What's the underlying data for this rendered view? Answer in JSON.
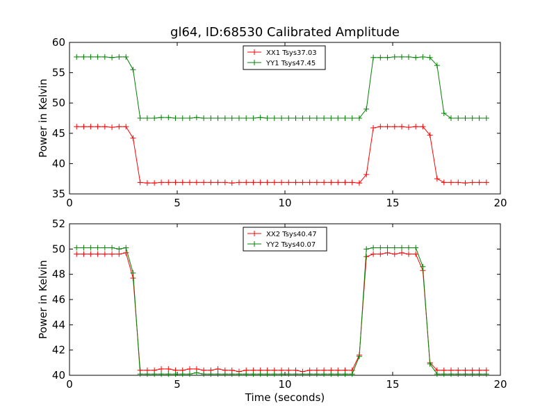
{
  "figure": {
    "title": "gl64, ID:68530 Calibrated Amplitude"
  },
  "chart_data": [
    {
      "type": "line",
      "title": "gl64, ID:68530 Calibrated Amplitude",
      "xlabel": "",
      "ylabel": "Power in Kelvin",
      "xlim": [
        0,
        20
      ],
      "ylim": [
        35,
        60
      ],
      "xticks": [
        0,
        5,
        10,
        15,
        20
      ],
      "yticks": [
        35,
        40,
        45,
        50,
        55,
        60
      ],
      "legend_placement": "upper-center",
      "grid": false,
      "series": [
        {
          "name": "XX1 Tsys37.03",
          "color": "#ff0000",
          "x": [
            0.33,
            0.66,
            0.98,
            1.31,
            1.64,
            1.97,
            2.3,
            2.62,
            2.95,
            3.28,
            3.61,
            3.94,
            4.26,
            4.59,
            4.92,
            5.25,
            5.58,
            5.9,
            6.23,
            6.56,
            6.89,
            7.22,
            7.54,
            7.87,
            8.2,
            8.53,
            8.86,
            9.18,
            9.51,
            9.84,
            10.17,
            10.5,
            10.82,
            11.15,
            11.48,
            11.81,
            12.14,
            12.46,
            12.79,
            13.12,
            13.45,
            13.78,
            14.1,
            14.43,
            14.76,
            15.09,
            15.42,
            15.74,
            16.07,
            16.4,
            16.73,
            17.06,
            17.38,
            17.71,
            18.04,
            18.37,
            18.7,
            19.02,
            19.35
          ],
          "values": [
            46.1,
            46.1,
            46.1,
            46.1,
            46.1,
            46.0,
            46.1,
            46.1,
            44.2,
            36.9,
            36.8,
            36.8,
            36.9,
            36.9,
            36.9,
            36.9,
            36.9,
            36.9,
            36.9,
            36.9,
            36.9,
            36.9,
            36.8,
            36.9,
            36.9,
            36.9,
            36.9,
            36.9,
            36.9,
            36.9,
            36.9,
            36.9,
            36.9,
            36.9,
            36.9,
            36.9,
            36.9,
            36.9,
            36.9,
            36.9,
            36.8,
            38.2,
            45.9,
            46.1,
            46.1,
            46.1,
            46.1,
            46.0,
            46.1,
            46.1,
            44.7,
            37.5,
            36.9,
            36.9,
            36.9,
            36.8,
            36.9,
            36.9,
            36.9
          ]
        },
        {
          "name": "YY1 Tsys47.45",
          "color": "#008000",
          "x": [
            0.33,
            0.66,
            0.98,
            1.31,
            1.64,
            1.97,
            2.3,
            2.62,
            2.95,
            3.28,
            3.61,
            3.94,
            4.26,
            4.59,
            4.92,
            5.25,
            5.58,
            5.9,
            6.23,
            6.56,
            6.89,
            7.22,
            7.54,
            7.87,
            8.2,
            8.53,
            8.86,
            9.18,
            9.51,
            9.84,
            10.17,
            10.5,
            10.82,
            11.15,
            11.48,
            11.81,
            12.14,
            12.46,
            12.79,
            13.12,
            13.45,
            13.78,
            14.1,
            14.43,
            14.76,
            15.09,
            15.42,
            15.74,
            16.07,
            16.4,
            16.73,
            17.06,
            17.38,
            17.71,
            18.04,
            18.37,
            18.7,
            19.02,
            19.35
          ],
          "values": [
            57.6,
            57.6,
            57.6,
            57.6,
            57.6,
            57.5,
            57.6,
            57.6,
            55.5,
            47.5,
            47.5,
            47.5,
            47.6,
            47.6,
            47.5,
            47.5,
            47.5,
            47.6,
            47.5,
            47.5,
            47.5,
            47.5,
            47.5,
            47.5,
            47.5,
            47.5,
            47.6,
            47.5,
            47.5,
            47.5,
            47.5,
            47.5,
            47.5,
            47.5,
            47.5,
            47.5,
            47.5,
            47.5,
            47.5,
            47.5,
            47.5,
            49.0,
            57.5,
            57.5,
            57.5,
            57.6,
            57.6,
            57.6,
            57.5,
            57.6,
            57.5,
            56.2,
            48.3,
            47.5,
            47.5,
            47.5,
            47.5,
            47.5,
            47.5
          ]
        }
      ]
    },
    {
      "type": "line",
      "title": "",
      "xlabel": "Time (seconds)",
      "ylabel": "Power in Kelvin",
      "xlim": [
        0,
        20
      ],
      "ylim": [
        40,
        52
      ],
      "xticks": [
        0,
        5,
        10,
        15,
        20
      ],
      "yticks": [
        40,
        42,
        44,
        46,
        48,
        50,
        52
      ],
      "legend_placement": "upper-center",
      "grid": false,
      "series": [
        {
          "name": "XX2 Tsys40.47",
          "color": "#ff0000",
          "x": [
            0.33,
            0.66,
            0.98,
            1.31,
            1.64,
            1.97,
            2.3,
            2.62,
            2.95,
            3.28,
            3.61,
            3.94,
            4.26,
            4.59,
            4.92,
            5.25,
            5.58,
            5.9,
            6.23,
            6.56,
            6.89,
            7.22,
            7.54,
            7.87,
            8.2,
            8.53,
            8.86,
            9.18,
            9.51,
            9.84,
            10.17,
            10.5,
            10.82,
            11.15,
            11.48,
            11.81,
            12.14,
            12.46,
            12.79,
            13.12,
            13.45,
            13.78,
            14.1,
            14.43,
            14.76,
            15.09,
            15.42,
            15.74,
            16.07,
            16.4,
            16.73,
            17.06,
            17.38,
            17.71,
            18.04,
            18.37,
            18.7,
            19.02,
            19.35
          ],
          "values": [
            49.6,
            49.6,
            49.6,
            49.6,
            49.6,
            49.6,
            49.6,
            49.7,
            47.7,
            40.4,
            40.4,
            40.4,
            40.5,
            40.5,
            40.4,
            40.4,
            40.5,
            40.5,
            40.4,
            40.4,
            40.5,
            40.4,
            40.4,
            40.3,
            40.4,
            40.4,
            40.4,
            40.4,
            40.4,
            40.4,
            40.4,
            40.4,
            40.3,
            40.4,
            40.4,
            40.4,
            40.4,
            40.4,
            40.4,
            40.4,
            41.6,
            49.4,
            49.6,
            49.6,
            49.7,
            49.6,
            49.7,
            49.6,
            49.6,
            48.3,
            41.0,
            40.4,
            40.4,
            40.4,
            40.4,
            40.4,
            40.4,
            40.4,
            40.4
          ]
        },
        {
          "name": "YY2 Tsys40.07",
          "color": "#008000",
          "x": [
            0.33,
            0.66,
            0.98,
            1.31,
            1.64,
            1.97,
            2.3,
            2.62,
            2.95,
            3.28,
            3.61,
            3.94,
            4.26,
            4.59,
            4.92,
            5.25,
            5.58,
            5.9,
            6.23,
            6.56,
            6.89,
            7.22,
            7.54,
            7.87,
            8.2,
            8.53,
            8.86,
            9.18,
            9.51,
            9.84,
            10.17,
            10.5,
            10.82,
            11.15,
            11.48,
            11.81,
            12.14,
            12.46,
            12.79,
            13.12,
            13.45,
            13.78,
            14.1,
            14.43,
            14.76,
            15.09,
            15.42,
            15.74,
            16.07,
            16.4,
            16.73,
            17.06,
            17.38,
            17.71,
            18.04,
            18.37,
            18.7,
            19.02,
            19.35
          ],
          "values": [
            50.1,
            50.1,
            50.1,
            50.1,
            50.1,
            50.1,
            50.0,
            50.1,
            48.1,
            40.1,
            40.1,
            40.1,
            40.1,
            40.1,
            40.1,
            40.1,
            40.1,
            40.2,
            40.1,
            40.1,
            40.1,
            40.1,
            40.1,
            40.1,
            40.1,
            40.1,
            40.1,
            40.1,
            40.1,
            40.1,
            40.1,
            40.1,
            40.1,
            40.1,
            40.1,
            40.1,
            40.1,
            40.1,
            40.1,
            40.1,
            41.5,
            50.0,
            50.1,
            50.1,
            50.1,
            50.1,
            50.1,
            50.1,
            50.1,
            48.6,
            40.9,
            40.1,
            40.1,
            40.1,
            40.1,
            40.1,
            40.1,
            40.1,
            40.1
          ]
        }
      ]
    }
  ]
}
